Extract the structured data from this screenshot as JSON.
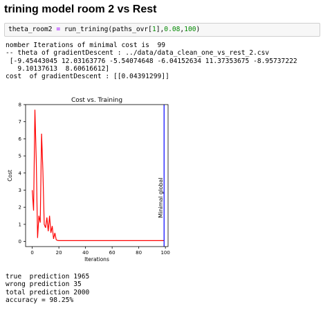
{
  "heading": "trining model room 2 vs Rest",
  "code": {
    "var": "theta_room2",
    "op": " = ",
    "fn": "run_trining(paths_ovr[",
    "arg1": "1",
    "mid": "],",
    "arg2": "0.08",
    "comma": ",",
    "arg3": "100",
    "close": ")"
  },
  "output_top": [
    "nomber Iterations of minimal cost is  99",
    "-- theta of gradientDescent : ../data/data_clean_one_vs_rest_2.csv",
    " [-9.45443045 12.03163776 -5.54074648 -6.04152634 11.37353675 -8.95737222",
    "   9.10137613  8.60616612]",
    "cost  of gradientDescent : [[0.04391299]]"
  ],
  "output_bottom": [
    "true  prediction 1965",
    "wrong prediction 35",
    "total prediction 2000",
    "accuracy = 98.25%"
  ],
  "chart_data": {
    "type": "line",
    "title": "Cost vs. Training",
    "xlabel": "Iterations",
    "ylabel": "Cost",
    "xlim": [
      -5,
      102
    ],
    "ylim": [
      -0.3,
      8.0
    ],
    "xticks": [
      0,
      20,
      40,
      60,
      80,
      100
    ],
    "yticks": [
      0,
      1,
      2,
      3,
      4,
      5,
      6,
      7,
      8
    ],
    "grid": false,
    "series": [
      {
        "color": "#ff0000",
        "x": [
          0,
          1,
          2,
          3,
          4,
          5,
          6,
          7,
          8,
          9,
          10,
          11,
          12,
          13,
          14,
          15,
          16,
          17,
          18,
          19,
          20,
          21,
          22,
          23,
          24,
          25,
          26,
          27,
          28,
          29,
          30,
          31,
          32,
          33,
          34,
          35,
          36,
          37,
          38,
          39,
          40,
          41,
          42,
          43,
          44,
          45,
          46,
          47,
          48,
          49,
          50,
          51,
          52,
          53,
          54,
          55,
          56,
          57,
          58,
          59,
          60,
          61,
          62,
          63,
          64,
          65,
          66,
          67,
          68,
          69,
          70,
          71,
          72,
          73,
          74,
          75,
          76,
          77,
          78,
          79,
          80,
          81,
          82,
          83,
          84,
          85,
          86,
          87,
          88,
          89,
          90,
          91,
          92,
          93,
          94,
          95,
          96,
          97,
          98,
          99
        ],
        "y": [
          3.0,
          1.8,
          7.7,
          4.8,
          0.2,
          1.5,
          1.1,
          6.3,
          4.1,
          1.0,
          0.8,
          1.4,
          0.6,
          1.5,
          0.5,
          0.9,
          0.15,
          0.5,
          0.1,
          0.06,
          0.05,
          0.05,
          0.05,
          0.05,
          0.05,
          0.05,
          0.05,
          0.05,
          0.05,
          0.05,
          0.05,
          0.05,
          0.05,
          0.05,
          0.05,
          0.05,
          0.05,
          0.05,
          0.05,
          0.05,
          0.05,
          0.05,
          0.05,
          0.05,
          0.05,
          0.05,
          0.05,
          0.05,
          0.05,
          0.05,
          0.05,
          0.05,
          0.05,
          0.05,
          0.05,
          0.05,
          0.05,
          0.05,
          0.05,
          0.05,
          0.05,
          0.05,
          0.05,
          0.05,
          0.05,
          0.05,
          0.05,
          0.05,
          0.05,
          0.05,
          0.05,
          0.05,
          0.05,
          0.05,
          0.05,
          0.05,
          0.05,
          0.05,
          0.05,
          0.05,
          0.05,
          0.05,
          0.05,
          0.05,
          0.05,
          0.05,
          0.05,
          0.05,
          0.05,
          0.05,
          0.05,
          0.05,
          0.05,
          0.05,
          0.05,
          0.05,
          0.05,
          0.05,
          0.05,
          0.05
        ]
      }
    ],
    "vline": {
      "x": 99,
      "color": "#0000ff",
      "label": "Minimal global"
    }
  }
}
